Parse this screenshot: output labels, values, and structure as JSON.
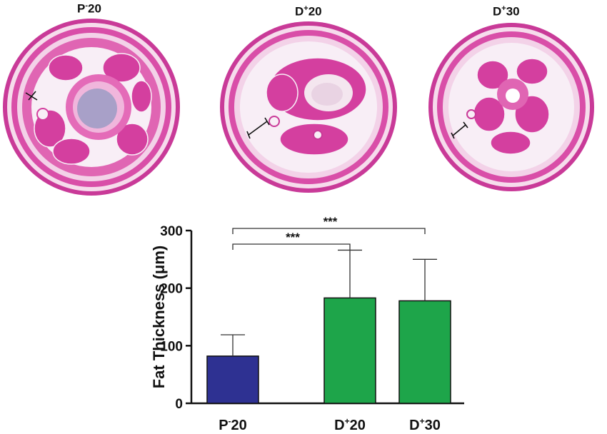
{
  "panels": [
    {
      "label_main": "P",
      "label_sup": "-",
      "label_num": "20"
    },
    {
      "label_main": "D",
      "label_sup": "+",
      "label_num": "20"
    },
    {
      "label_main": "D",
      "label_sup": "+",
      "label_num": "30"
    }
  ],
  "colors": {
    "stain_pink": "#d94ea8",
    "stain_light": "#f2c4e2",
    "stain_dark": "#b02a86",
    "fat_white": "#f8eef6",
    "bar_blue": "#2e3192",
    "bar_green": "#1ea54a"
  },
  "chart_data": {
    "type": "bar",
    "categories": [
      "P-20",
      "D+20",
      "D+30"
    ],
    "category_labels": [
      {
        "main": "P",
        "sup": "-",
        "num": "20"
      },
      {
        "main": "D",
        "sup": "+",
        "num": "20"
      },
      {
        "main": "D",
        "sup": "+",
        "num": "30"
      }
    ],
    "values": [
      82,
      183,
      178
    ],
    "error_upper": [
      119,
      266,
      250
    ],
    "bar_colors": [
      "#2e3192",
      "#1ea54a",
      "#1ea54a"
    ],
    "ylabel": "Fat Thickness (μm)",
    "ylim": [
      0,
      300
    ],
    "yticks": [
      0,
      100,
      200,
      300
    ],
    "significance": [
      {
        "from": "P-20",
        "to": "D+20",
        "label": "***"
      },
      {
        "from": "P-20",
        "to": "D+30",
        "label": "***"
      }
    ]
  }
}
